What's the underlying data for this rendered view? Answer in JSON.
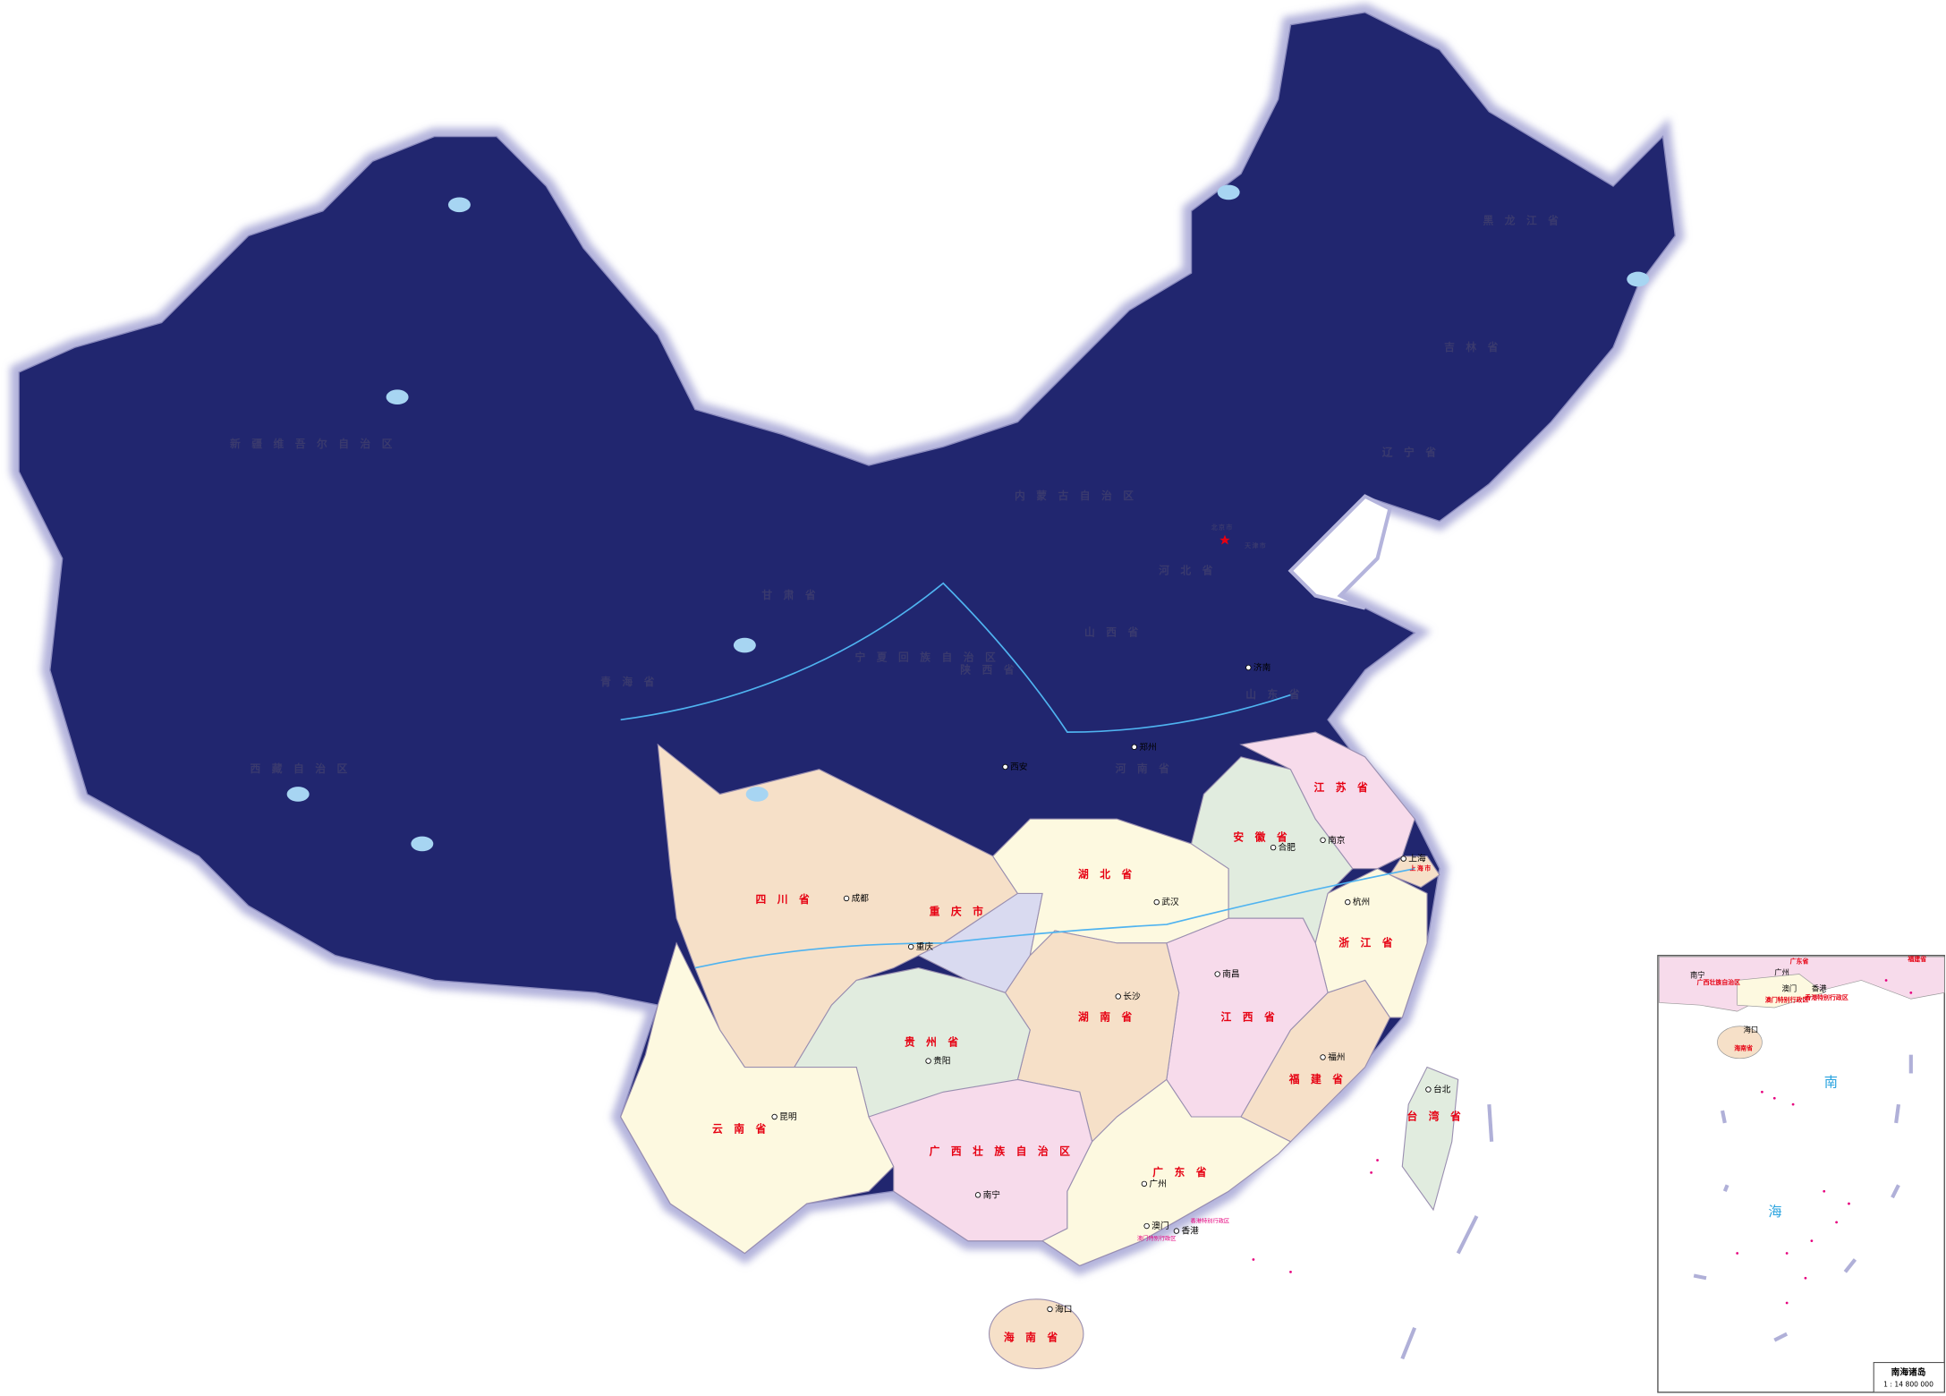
{
  "map": {
    "regions": [
      {
        "name": "新疆维吾尔自治区",
        "color": "#21266f"
      },
      {
        "name": "西藏自治区",
        "color": "#21266f"
      },
      {
        "name": "青海省",
        "color": "#21266f"
      },
      {
        "name": "甘肃省",
        "color": "#21266f"
      },
      {
        "name": "内蒙古自治区",
        "color": "#21266f"
      },
      {
        "name": "黑龙江省",
        "color": "#21266f"
      },
      {
        "name": "吉林省",
        "color": "#21266f"
      },
      {
        "name": "辽宁省",
        "color": "#21266f"
      },
      {
        "name": "宁夏回族自治区",
        "color": "#21266f"
      },
      {
        "name": "陕西省",
        "color": "#21266f"
      },
      {
        "name": "山西省",
        "color": "#21266f"
      },
      {
        "name": "河北省",
        "color": "#21266f"
      },
      {
        "name": "北京市",
        "color": "#21266f"
      },
      {
        "name": "天津市",
        "color": "#21266f"
      },
      {
        "name": "山东省",
        "color": "#21266f"
      },
      {
        "name": "河南省",
        "color": "#21266f"
      },
      {
        "name": "四川省",
        "color": "#f6e0c8"
      },
      {
        "name": "重庆市",
        "color": "#d9daf0"
      },
      {
        "name": "湖北省",
        "color": "#fdf9e0"
      },
      {
        "name": "安徽省",
        "color": "#e1ecdf"
      },
      {
        "name": "江苏省",
        "color": "#f7dbeb"
      },
      {
        "name": "上海市",
        "color": "#f6e0c8"
      },
      {
        "name": "浙江省",
        "color": "#fdf9e0"
      },
      {
        "name": "江西省",
        "color": "#f7dbeb"
      },
      {
        "name": "湖南省",
        "color": "#f6e0c8"
      },
      {
        "name": "贵州省",
        "color": "#e1ecdf"
      },
      {
        "name": "云南省",
        "color": "#fdf9e0"
      },
      {
        "name": "广西壮族自治区",
        "color": "#f7dbeb"
      },
      {
        "name": "广东省",
        "color": "#fdf9e0"
      },
      {
        "name": "福建省",
        "color": "#f6e0c8"
      },
      {
        "name": "台湾省",
        "color": "#e1ecdf"
      },
      {
        "name": "海南省",
        "color": "#f6e0c8"
      }
    ],
    "cities": [
      "成都",
      "重庆",
      "贵阳",
      "昆明",
      "南宁",
      "广州",
      "澳门",
      "香港",
      "海口",
      "长沙",
      "武汉",
      "南昌",
      "福州",
      "台北",
      "杭州",
      "上海",
      "南京",
      "合肥",
      "郑州",
      "西安",
      "济南"
    ],
    "special_regions": [
      "香港特别行政区",
      "澳门特别行政区"
    ],
    "inset": {
      "title": "南海诸岛",
      "scale": "1 : 14 800 000",
      "sea_labels": [
        "南",
        "海"
      ],
      "labels": [
        "南宁",
        "广州",
        "澳门",
        "香港",
        "海口",
        "广东省",
        "广西壮族自治区",
        "海南省",
        "澳门特别行政区",
        "香港特别行政区",
        "福建省"
      ]
    }
  }
}
